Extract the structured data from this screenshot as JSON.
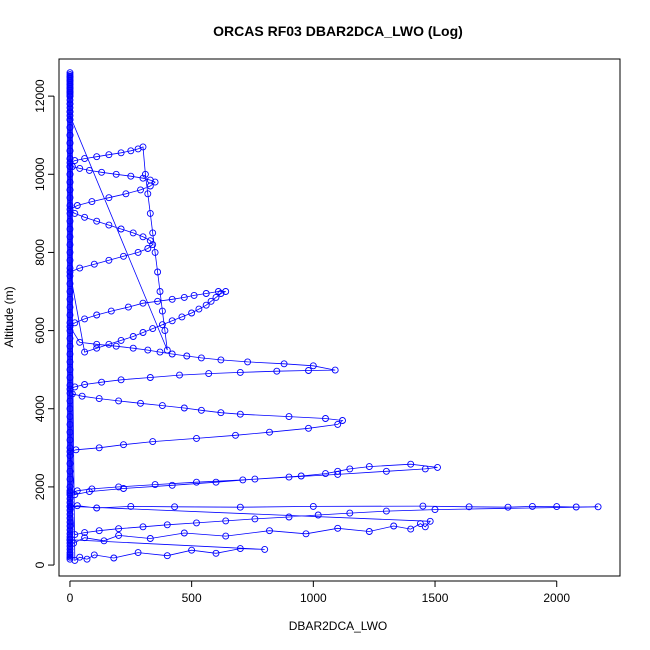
{
  "chart_data": {
    "type": "line",
    "title": "ORCAS RF03 DBAR2DCA_LWO (Log)",
    "xlabel": "DBAR2DCA_LWO",
    "ylabel": "Altitude (m)",
    "xlim": [
      -45,
      2260
    ],
    "ylim": [
      -280,
      12950
    ],
    "x_ticks": [
      0,
      500,
      1000,
      1500,
      2000
    ],
    "y_ticks": [
      0,
      2000,
      4000,
      6000,
      8000,
      10000,
      12000
    ],
    "grid": false,
    "legend": "none",
    "line_color": "#0000FF",
    "marker": "open-circle",
    "series": [
      {
        "x": [
          0,
          0,
          0,
          0,
          0,
          0,
          0,
          0,
          0,
          0,
          0,
          0,
          0,
          0,
          0,
          0,
          0,
          0,
          0,
          0,
          0,
          0,
          0,
          0,
          0,
          0,
          0,
          0,
          0,
          0,
          0,
          0,
          0,
          0,
          0,
          0,
          0,
          0,
          0,
          0,
          0,
          0,
          0,
          0,
          0,
          0,
          0,
          0,
          0,
          0,
          0,
          0,
          0,
          0,
          0,
          0,
          0,
          0,
          0,
          0,
          0,
          0,
          0,
          0,
          0,
          0,
          0,
          0,
          0,
          20,
          40,
          70,
          100,
          180,
          280,
          400,
          500,
          600,
          700,
          800,
          0,
          15,
          60,
          140,
          200,
          330,
          470,
          640,
          820,
          970,
          1100,
          1230,
          1330,
          1400,
          1440,
          1460,
          1480,
          0,
          5,
          30,
          110,
          250,
          430,
          700,
          1000,
          1450,
          1640,
          1800,
          1900,
          2000,
          2080,
          2170,
          1500,
          1300,
          1150,
          1020,
          900,
          760,
          640,
          520,
          400,
          300,
          200,
          120,
          60,
          20,
          0,
          30,
          90,
          200,
          350,
          520,
          710,
          900,
          1100,
          1300,
          1460,
          1510,
          1400,
          1230,
          1150,
          1100,
          1050,
          950,
          760,
          600,
          420,
          220,
          80,
          20,
          0,
          25,
          120,
          220,
          340,
          520,
          680,
          820,
          980,
          1100,
          1120,
          1050,
          900,
          700,
          620,
          540,
          470,
          380,
          290,
          200,
          120,
          50,
          10,
          0,
          20,
          60,
          130,
          210,
          330,
          450,
          570,
          700,
          850,
          980,
          1090,
          1000,
          880,
          730,
          620,
          540,
          480,
          420,
          370,
          320,
          260,
          190,
          110,
          40,
          0,
          20,
          60,
          110,
          170,
          240,
          300,
          360,
          420,
          470,
          510,
          560,
          610,
          640,
          620,
          600,
          580,
          560,
          530,
          500,
          460,
          420,
          380,
          340,
          300,
          260,
          210,
          160,
          110,
          60,
          0,
          40,
          100,
          160,
          220,
          280,
          320,
          340,
          330,
          300,
          260,
          210,
          160,
          110,
          60,
          20,
          0,
          30,
          90,
          160,
          230,
          290,
          330,
          350,
          330,
          300,
          250,
          190,
          130,
          80,
          40,
          10,
          0,
          20,
          60,
          110,
          160,
          210,
          250,
          280,
          300,
          310,
          320,
          330,
          340,
          350,
          360,
          370,
          380,
          390,
          400,
          0,
          0,
          0,
          0,
          0,
          0,
          0,
          0,
          0,
          0,
          0,
          0,
          0,
          0,
          0,
          0,
          0,
          0,
          0,
          0,
          0,
          0,
          0,
          0,
          0,
          0,
          0,
          0,
          0,
          0,
          0,
          0,
          0,
          0,
          0,
          0
        ],
        "y": [
          150,
          200,
          260,
          320,
          400,
          480,
          560,
          640,
          720,
          800,
          900,
          1000,
          1100,
          1200,
          1300,
          1400,
          1500,
          1600,
          1700,
          1800,
          1900,
          2000,
          2200,
          2400,
          2600,
          2800,
          3000,
          3200,
          3400,
          3600,
          3800,
          4000,
          4200,
          4400,
          4600,
          4800,
          5000,
          5200,
          5400,
          5600,
          5800,
          6000,
          6200,
          6400,
          6600,
          6800,
          7000,
          7200,
          7400,
          7600,
          7800,
          8000,
          8200,
          8400,
          8600,
          8800,
          9000,
          9200,
          9400,
          9600,
          9800,
          10000,
          10200,
          10400,
          10600,
          10800,
          11000,
          11200,
          11400,
          120,
          200,
          150,
          260,
          180,
          320,
          240,
          380,
          300,
          420,
          400,
          650,
          560,
          700,
          620,
          760,
          680,
          820,
          740,
          880,
          800,
          940,
          860,
          1000,
          920,
          1060,
          980,
          1120,
          1500,
          1480,
          1520,
          1460,
          1500,
          1490,
          1480,
          1500,
          1510,
          1490,
          1480,
          1500,
          1495,
          1485,
          1490,
          1420,
          1380,
          1330,
          1280,
          1230,
          1180,
          1130,
          1080,
          1030,
          980,
          930,
          880,
          830,
          780,
          1850,
          1900,
          1950,
          2000,
          2060,
          2120,
          2180,
          2250,
          2320,
          2400,
          2460,
          2500,
          2580,
          2520,
          2460,
          2400,
          2340,
          2280,
          2200,
          2120,
          2040,
          1960,
          1880,
          1800,
          2900,
          2950,
          3000,
          3080,
          3160,
          3240,
          3320,
          3400,
          3500,
          3600,
          3700,
          3750,
          3800,
          3860,
          3900,
          3960,
          4020,
          4080,
          4140,
          4200,
          4260,
          4320,
          4380,
          4500,
          4560,
          4620,
          4680,
          4740,
          4800,
          4860,
          4900,
          4930,
          4960,
          4980,
          4990,
          5100,
          5150,
          5200,
          5250,
          5300,
          5350,
          5400,
          5450,
          5500,
          5550,
          5600,
          5650,
          5700,
          6100,
          6200,
          6300,
          6400,
          6500,
          6600,
          6700,
          6750,
          6800,
          6850,
          6900,
          6950,
          7000,
          7000,
          6950,
          6850,
          6750,
          6650,
          6550,
          6450,
          6350,
          6250,
          6150,
          6050,
          5950,
          5850,
          5750,
          5650,
          5550,
          5450,
          7500,
          7600,
          7700,
          7800,
          7900,
          8000,
          8100,
          8200,
          8300,
          8400,
          8500,
          8600,
          8700,
          8800,
          8900,
          9000,
          9100,
          9200,
          9300,
          9400,
          9500,
          9600,
          9700,
          9800,
          9850,
          9900,
          9950,
          10000,
          10050,
          10100,
          10150,
          10200,
          10300,
          10350,
          10400,
          10450,
          10500,
          10550,
          10600,
          10650,
          10700,
          10000,
          9500,
          9000,
          8500,
          8000,
          7500,
          7000,
          6500,
          6000,
          5500,
          11500,
          11600,
          11700,
          11800,
          11900,
          12000,
          12050,
          12100,
          12150,
          12200,
          12250,
          12300,
          12350,
          12400,
          12450,
          12500,
          12550,
          12600,
          12500,
          12400,
          12300,
          12200,
          12100,
          12000,
          11800,
          11600,
          11400,
          11200,
          11000,
          10800,
          10600,
          10400,
          10200,
          10000,
          9800,
          9600
        ]
      }
    ]
  }
}
